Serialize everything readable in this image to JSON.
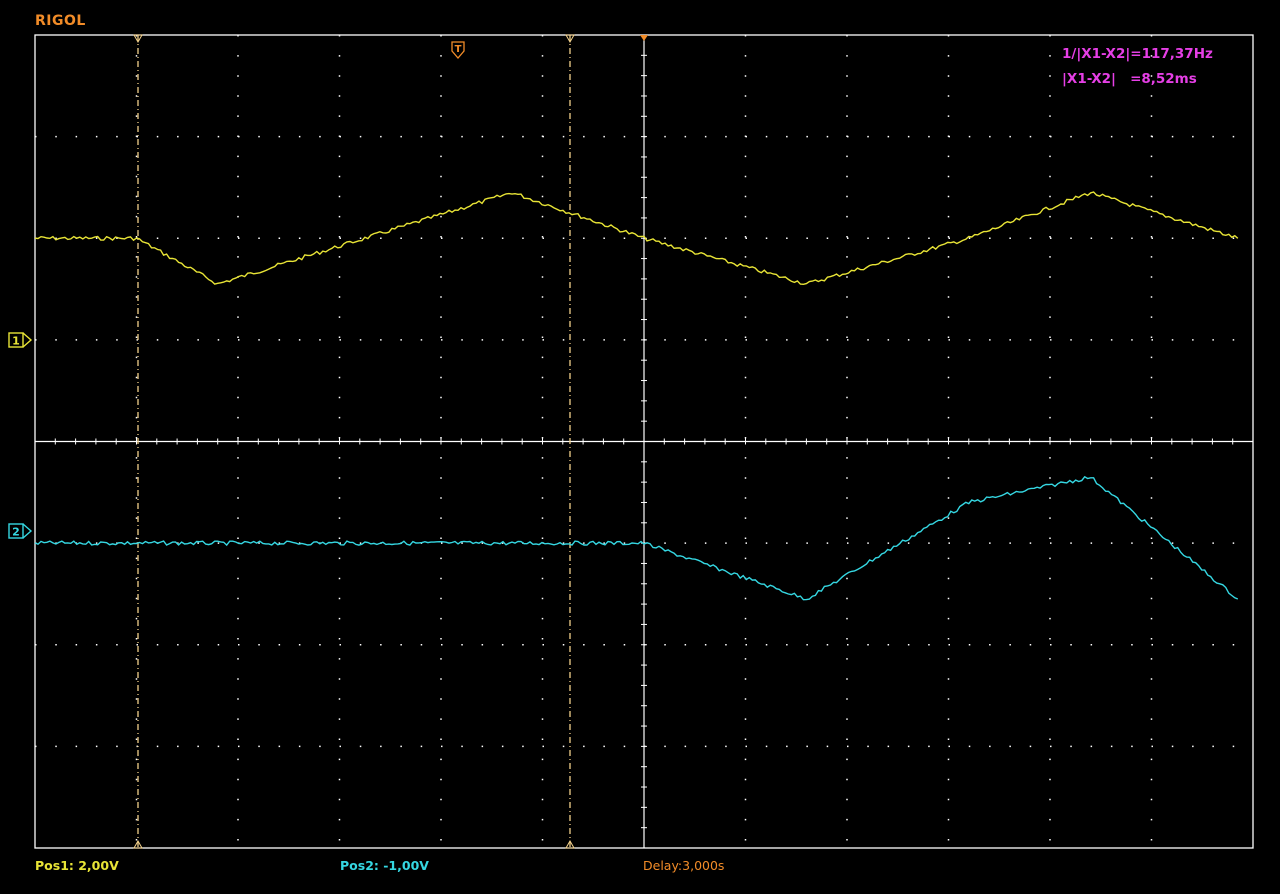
{
  "brand": "RIGOL",
  "measurements": {
    "freq": "1/|X1-X2|=117,37Hz",
    "delta": "|X1-X2|   =8,52ms"
  },
  "footer": {
    "pos1": "Pos1:  2,00V",
    "pos2": "Pos2:  -1,00V",
    "delay": "Delay:3,000s"
  },
  "channels": {
    "ch1_label": "1",
    "ch2_label": "2"
  },
  "trigger_label": "T",
  "colors": {
    "ch1": "#e8e436",
    "ch2": "#35d7e2",
    "cursor": "#f2d08a",
    "trigger": "#f28c28",
    "measure": "#e63fe6",
    "grid": "#ffffff"
  },
  "chart_data": {
    "type": "line",
    "x_divisions": 12,
    "y_divisions": 8,
    "x": [
      0,
      1.0,
      1.8,
      4.7,
      6.0,
      7.6,
      9.2,
      10.4,
      11.85
    ],
    "series": [
      {
        "name": "1",
        "values": [
          2.0,
          2.0,
          1.55,
          2.45,
          2.0,
          1.55,
          2.0,
          2.45,
          2.0
        ]
      },
      {
        "name": "2",
        "values": [
          -1.0,
          -1.0,
          -1.0,
          -1.0,
          -1.0,
          -1.55,
          -0.6,
          -0.35,
          -1.55
        ]
      }
    ]
  }
}
